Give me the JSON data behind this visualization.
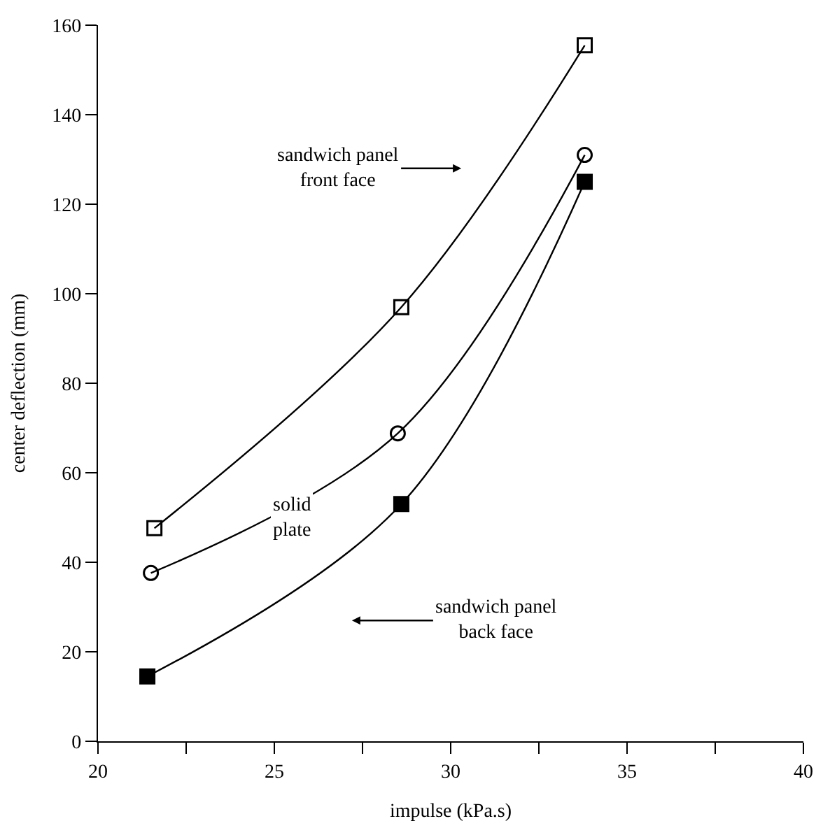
{
  "chart_data": {
    "type": "line",
    "xlabel": "impulse (kPa.s)",
    "ylabel": "center deflection (mm)",
    "xlim": [
      20,
      40
    ],
    "ylim": [
      0,
      160
    ],
    "xticks": [
      20,
      {
        "value": 22.5,
        "label": null
      },
      25,
      {
        "value": 27.5,
        "label": null
      },
      30,
      {
        "value": 32.5,
        "label": null
      },
      35,
      {
        "value": 37.5,
        "label": null
      },
      40
    ],
    "yticks": [
      0,
      20,
      40,
      60,
      80,
      100,
      120,
      140,
      160
    ],
    "annotations": [
      "sandwich panel front face",
      "solid plate",
      "sandwich panel back face"
    ],
    "legend": false,
    "line_style": "solid",
    "series": [
      {
        "color": "#000000",
        "marker": "square-open",
        "x": [
          21.6,
          28.6,
          33.8
        ],
        "values": [
          47.6,
          97,
          155.5
        ]
      },
      {
        "color": "#000000",
        "marker": "circle-open",
        "x": [
          21.5,
          28.5,
          33.8
        ],
        "values": [
          37.6,
          68.8,
          131
        ]
      },
      {
        "color": "#000000",
        "marker": "square",
        "x": [
          21.4,
          28.6,
          33.8
        ],
        "values": [
          14.5,
          53,
          125
        ]
      }
    ]
  }
}
